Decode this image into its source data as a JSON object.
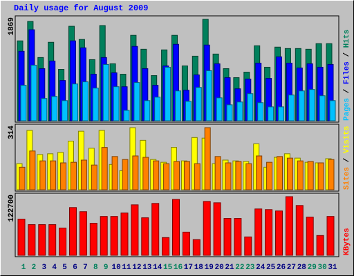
{
  "chart_data": {
    "type": "bar",
    "title": "Daily usage for August 2009",
    "categories": [
      "1",
      "2",
      "3",
      "4",
      "5",
      "6",
      "7",
      "8",
      "9",
      "10",
      "11",
      "12",
      "13",
      "14",
      "15",
      "16",
      "17",
      "18",
      "19",
      "20",
      "21",
      "22",
      "23",
      "24",
      "25",
      "26",
      "27",
      "28",
      "29",
      "30",
      "31"
    ],
    "weekend": [
      true,
      true,
      false,
      false,
      false,
      false,
      false,
      true,
      true,
      false,
      false,
      false,
      false,
      false,
      true,
      true,
      false,
      false,
      false,
      false,
      false,
      true,
      true,
      false,
      false,
      false,
      false,
      false,
      true,
      true,
      false
    ],
    "weekend_color": "#00805c",
    "weekday_color": "#000080",
    "legend_separator": " / ",
    "panels": [
      {
        "ylim": [
          0,
          1869
        ],
        "yticks": [
          1869
        ],
        "series": [
          {
            "name": "Hits",
            "color": "#00805c",
            "values": [
              1472,
              1830,
              1165,
              1446,
              947,
              1741,
              1498,
              1126,
              1754,
              1050,
              858,
              1574,
              1318,
              832,
              1306,
              1574,
              1011,
              1190,
              1869,
              1229,
              960,
              794,
              896,
              1382,
              986,
              1357,
              1331,
              1331,
              1318,
              1421,
              1421
            ]
          },
          {
            "name": "Files",
            "color": "#0000ff",
            "values": [
              1280,
              1677,
              960,
              1101,
              742,
              1472,
              1344,
              858,
              1165,
              883,
              627,
              1370,
              960,
              653,
              1011,
              1408,
              563,
              845,
              1395,
              1050,
              794,
              589,
              768,
              1062,
              781,
              1178,
              1062,
              973,
              1050,
              986,
              1037
            ]
          },
          {
            "name": "Pages",
            "color": "#00c0ff",
            "values": [
              653,
              1024,
              410,
              448,
              371,
              678,
              717,
              602,
              1037,
              627,
              192,
              704,
              371,
              435,
              986,
              550,
              358,
              614,
              922,
              422,
              294,
              346,
              499,
              333,
              256,
              256,
              474,
              550,
              576,
              461,
              371
            ]
          }
        ]
      },
      {
        "ylim": [
          0,
          314
        ],
        "yticks": [
          314
        ],
        "series": [
          {
            "name": "Visits",
            "color": "#ffff00",
            "values": [
              132,
              300,
              178,
              182,
              189,
              246,
              296,
              210,
              300,
              128,
              96,
              314,
              250,
              153,
              139,
              214,
              146,
              264,
              261,
              132,
              150,
              146,
              143,
              232,
              114,
              164,
              182,
              160,
              139,
              136,
              157
            ]
          },
          {
            "name": "Sites",
            "color": "#ff8000",
            "values": [
              114,
              196,
              146,
              146,
              136,
              139,
              150,
              125,
              214,
              168,
              153,
              171,
              164,
              146,
              132,
              143,
              143,
              132,
              314,
              168,
              136,
              143,
              132,
              171,
              139,
              168,
              160,
              146,
              143,
              136,
              153
            ]
          }
        ]
      },
      {
        "ylim": [
          0,
          122700
        ],
        "yticks": [
          122700
        ],
        "series": [
          {
            "name": "KBytes",
            "color": "#ff0000",
            "values": [
              75600,
              64200,
              64200,
              64200,
              57100,
              99900,
              91300,
              67100,
              81300,
              81300,
              88500,
              105600,
              78500,
              108500,
              37100,
              117000,
              48500,
              32800,
              112700,
              109900,
              77100,
              77100,
              38500,
              97000,
              95600,
              92800,
              122700,
              104200,
              79900,
              41400,
              81300
            ]
          }
        ]
      }
    ]
  }
}
